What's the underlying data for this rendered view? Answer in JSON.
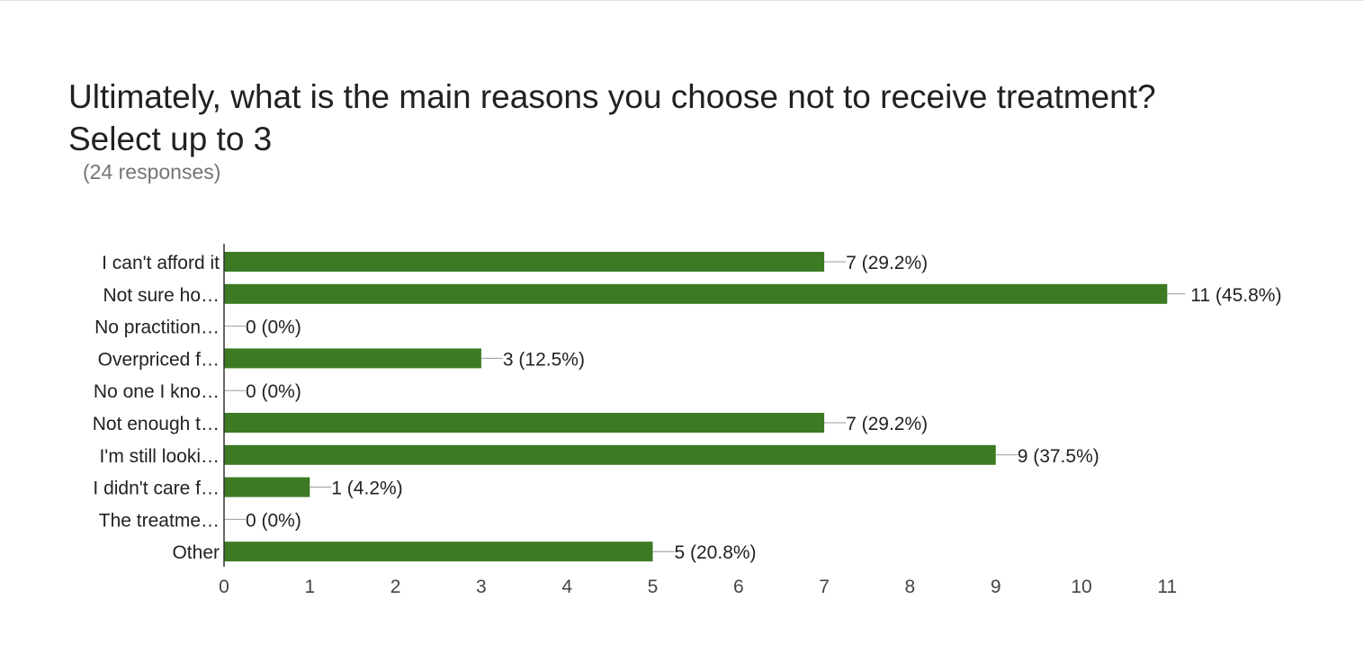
{
  "chart_data": {
    "type": "bar",
    "orientation": "horizontal",
    "title_lines": [
      "Ultimately, what is the main reasons you choose not to receive treatment?",
      "Select up to 3"
    ],
    "subtitle": "(24 responses)",
    "categories": [
      "I can't afford it",
      "Not sure ho…",
      "No practition…",
      "Overpriced f…",
      "No one I kno…",
      "Not enough t…",
      "I'm still looki…",
      "I didn't care f…",
      "The treatme…",
      "Other"
    ],
    "values": [
      7,
      11,
      0,
      3,
      0,
      7,
      9,
      1,
      0,
      5
    ],
    "data_labels": [
      "7 (29.2%)",
      "11 (45.8%)",
      "0 (0%)",
      "3 (12.5%)",
      "0 (0%)",
      "7 (29.2%)",
      "9 (37.5%)",
      "1 (4.2%)",
      "0 (0%)",
      "5 (20.8%)"
    ],
    "xlim": [
      0,
      11
    ],
    "xticks": [
      "0",
      "1",
      "2",
      "3",
      "4",
      "5",
      "6",
      "7",
      "8",
      "9",
      "10",
      "11"
    ],
    "grid": false,
    "legend": "none",
    "bar_color": "#3c7a23"
  }
}
